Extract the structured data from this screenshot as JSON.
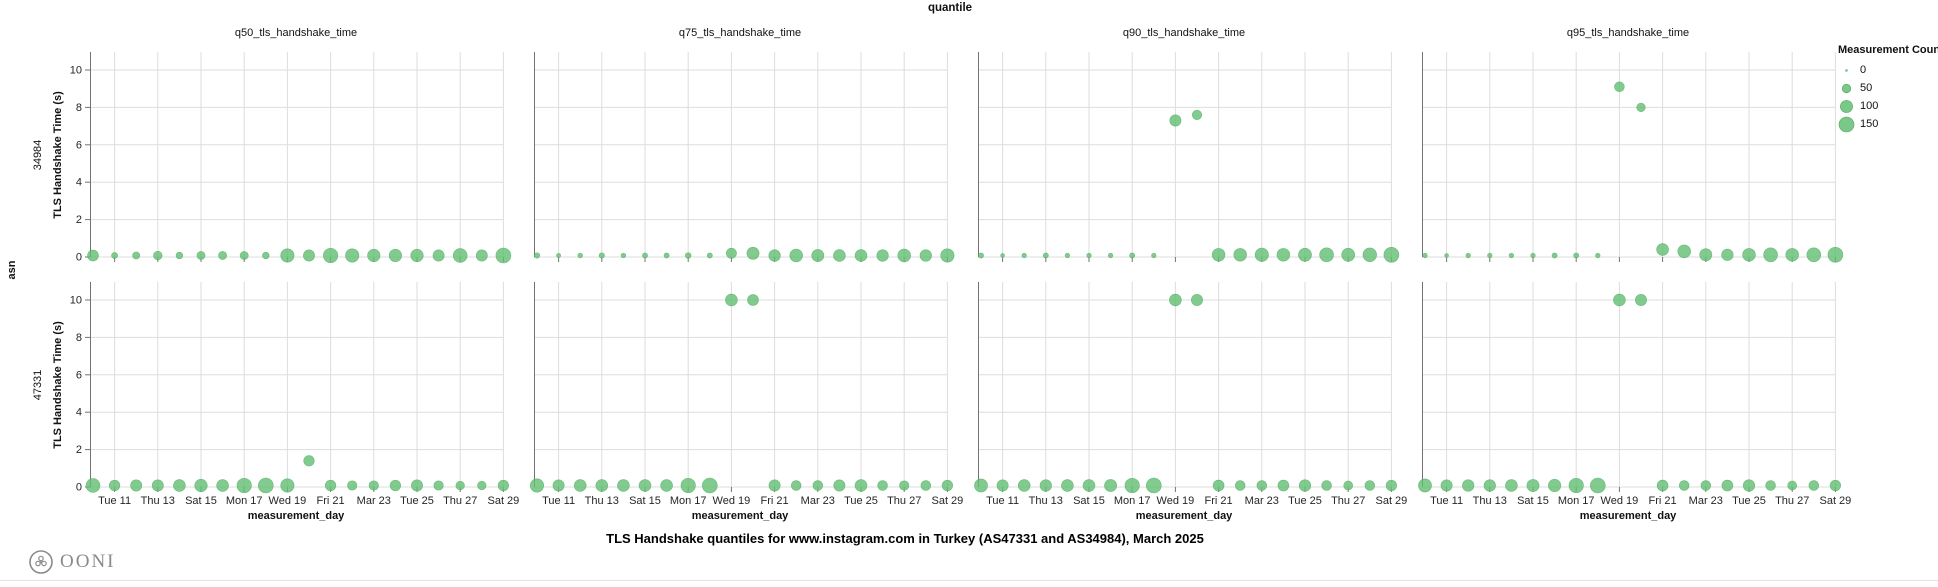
{
  "header": {
    "facet_title": "quantile"
  },
  "footer": {
    "caption": "TLS Handshake quantiles for www.instagram.com in Turkey (AS47331 and AS34984), March 2025",
    "brand": "OONI"
  },
  "legend": {
    "title": "Measurement Count",
    "items": [
      {
        "label": "0",
        "count": 0
      },
      {
        "label": "50",
        "count": 50
      },
      {
        "label": "100",
        "count": 100
      },
      {
        "label": "150",
        "count": 150
      }
    ]
  },
  "colors": {
    "point_fill": "#62BE73",
    "point_stroke": "#4fa961",
    "grid": "#dddddd",
    "axis_domain": "#737373",
    "tick_text": "#262626"
  },
  "chart_data": {
    "type": "scatter",
    "title": "quantile",
    "facets": {
      "row_title": "asn",
      "rows": [
        "34984",
        "47331"
      ],
      "columns": [
        "q50_tls_handshake_time",
        "q75_tls_handshake_time",
        "q90_tls_handshake_time",
        "q95_tls_handshake_time"
      ]
    },
    "axes": {
      "y": {
        "title": "TLS Handshake Time (s)",
        "ticks": [
          0,
          2,
          4,
          6,
          8,
          10
        ],
        "min": 0,
        "max": 10
      },
      "x": {
        "title": "measurement_day",
        "month": "March 2025",
        "day_range": [
          10,
          29
        ],
        "ticks": [
          {
            "day": 11,
            "label": "Tue 11"
          },
          {
            "day": 13,
            "label": "Thu 13"
          },
          {
            "day": 15,
            "label": "Sat 15"
          },
          {
            "day": 17,
            "label": "Mon 17"
          },
          {
            "day": 19,
            "label": "Wed 19"
          },
          {
            "day": 21,
            "label": "Fri 21"
          },
          {
            "day": 23,
            "label": "Mar 23"
          },
          {
            "day": 25,
            "label": "Tue 25"
          },
          {
            "day": 27,
            "label": "Thu 27"
          },
          {
            "day": 29,
            "label": "Sat 29"
          }
        ]
      }
    },
    "size_scale": {
      "field": "measurement_count",
      "type": "sqrt",
      "domain": [
        0,
        150
      ],
      "max_radius_px": 7.5
    },
    "point_format": [
      "day_of_march",
      "tls_handshake_time_s",
      "measurement_count"
    ],
    "panels": [
      {
        "row": "34984",
        "col": "q50_tls_handshake_time",
        "points": [
          [
            10,
            0.08,
            80
          ],
          [
            11,
            0.08,
            25
          ],
          [
            12,
            0.08,
            35
          ],
          [
            13,
            0.08,
            50
          ],
          [
            14,
            0.08,
            30
          ],
          [
            15,
            0.08,
            45
          ],
          [
            16,
            0.08,
            45
          ],
          [
            17,
            0.08,
            45
          ],
          [
            18,
            0.08,
            30
          ],
          [
            19,
            0.08,
            120
          ],
          [
            20,
            0.08,
            85
          ],
          [
            21,
            0.08,
            140
          ],
          [
            22,
            0.08,
            120
          ],
          [
            23,
            0.08,
            105
          ],
          [
            24,
            0.08,
            105
          ],
          [
            25,
            0.08,
            105
          ],
          [
            26,
            0.08,
            85
          ],
          [
            27,
            0.08,
            130
          ],
          [
            28,
            0.08,
            85
          ],
          [
            29,
            0.08,
            150
          ]
        ]
      },
      {
        "row": "34984",
        "col": "q75_tls_handshake_time",
        "points": [
          [
            10,
            0.08,
            20
          ],
          [
            11,
            0.08,
            12
          ],
          [
            12,
            0.08,
            15
          ],
          [
            13,
            0.08,
            20
          ],
          [
            14,
            0.08,
            15
          ],
          [
            15,
            0.08,
            18
          ],
          [
            16,
            0.08,
            18
          ],
          [
            17,
            0.08,
            22
          ],
          [
            18,
            0.08,
            18
          ],
          [
            19,
            0.2,
            70
          ],
          [
            20,
            0.2,
            100
          ],
          [
            21,
            0.08,
            90
          ],
          [
            22,
            0.08,
            110
          ],
          [
            23,
            0.08,
            100
          ],
          [
            24,
            0.08,
            95
          ],
          [
            25,
            0.08,
            95
          ],
          [
            26,
            0.08,
            90
          ],
          [
            27,
            0.08,
            110
          ],
          [
            28,
            0.08,
            90
          ],
          [
            29,
            0.08,
            120
          ]
        ]
      },
      {
        "row": "34984",
        "col": "q90_tls_handshake_time",
        "points": [
          [
            10,
            0.08,
            18
          ],
          [
            11,
            0.08,
            10
          ],
          [
            12,
            0.08,
            14
          ],
          [
            13,
            0.08,
            18
          ],
          [
            14,
            0.08,
            14
          ],
          [
            15,
            0.08,
            14
          ],
          [
            16,
            0.08,
            14
          ],
          [
            17,
            0.08,
            18
          ],
          [
            18,
            0.08,
            14
          ],
          [
            19,
            7.3,
            85
          ],
          [
            20,
            7.6,
            60
          ],
          [
            21,
            0.12,
            110
          ],
          [
            22,
            0.12,
            110
          ],
          [
            23,
            0.12,
            120
          ],
          [
            24,
            0.12,
            110
          ],
          [
            25,
            0.12,
            115
          ],
          [
            26,
            0.12,
            130
          ],
          [
            27,
            0.12,
            115
          ],
          [
            28,
            0.12,
            125
          ],
          [
            29,
            0.12,
            150
          ]
        ]
      },
      {
        "row": "34984",
        "col": "q95_tls_handshake_time",
        "points": [
          [
            10,
            0.08,
            14
          ],
          [
            11,
            0.08,
            10
          ],
          [
            12,
            0.08,
            14
          ],
          [
            13,
            0.08,
            14
          ],
          [
            14,
            0.08,
            14
          ],
          [
            15,
            0.08,
            14
          ],
          [
            16,
            0.08,
            18
          ],
          [
            17,
            0.08,
            18
          ],
          [
            18,
            0.08,
            14
          ],
          [
            19,
            9.1,
            65
          ],
          [
            20,
            8.0,
            50
          ],
          [
            21,
            0.4,
            95
          ],
          [
            22,
            0.3,
            110
          ],
          [
            23,
            0.12,
            100
          ],
          [
            24,
            0.12,
            90
          ],
          [
            25,
            0.12,
            110
          ],
          [
            26,
            0.12,
            130
          ],
          [
            27,
            0.12,
            110
          ],
          [
            28,
            0.12,
            130
          ],
          [
            29,
            0.12,
            150
          ]
        ]
      },
      {
        "row": "47331",
        "col": "q50_tls_handshake_time",
        "points": [
          [
            10,
            0.08,
            130
          ],
          [
            11,
            0.08,
            75
          ],
          [
            12,
            0.08,
            85
          ],
          [
            13,
            0.08,
            85
          ],
          [
            14,
            0.08,
            95
          ],
          [
            15,
            0.08,
            105
          ],
          [
            16,
            0.08,
            95
          ],
          [
            17,
            0.08,
            140
          ],
          [
            18,
            0.08,
            150
          ],
          [
            19,
            0.08,
            120
          ],
          [
            20,
            1.4,
            75
          ],
          [
            21,
            0.08,
            75
          ],
          [
            22,
            0.08,
            60
          ],
          [
            23,
            0.08,
            60
          ],
          [
            24,
            0.08,
            75
          ],
          [
            25,
            0.08,
            85
          ],
          [
            26,
            0.08,
            60
          ],
          [
            27,
            0.08,
            50
          ],
          [
            28,
            0.08,
            50
          ],
          [
            29,
            0.08,
            75
          ]
        ]
      },
      {
        "row": "47331",
        "col": "q75_tls_handshake_time",
        "points": [
          [
            10,
            0.08,
            120
          ],
          [
            11,
            0.08,
            85
          ],
          [
            12,
            0.08,
            95
          ],
          [
            13,
            0.08,
            95
          ],
          [
            14,
            0.08,
            95
          ],
          [
            15,
            0.08,
            95
          ],
          [
            16,
            0.08,
            95
          ],
          [
            17,
            0.08,
            140
          ],
          [
            18,
            0.08,
            150
          ],
          [
            19,
            10,
            95
          ],
          [
            20,
            10,
            80
          ],
          [
            21,
            0.08,
            85
          ],
          [
            22,
            0.08,
            65
          ],
          [
            23,
            0.08,
            65
          ],
          [
            24,
            0.08,
            85
          ],
          [
            25,
            0.08,
            95
          ],
          [
            26,
            0.08,
            65
          ],
          [
            27,
            0.08,
            60
          ],
          [
            28,
            0.08,
            65
          ],
          [
            29,
            0.08,
            75
          ]
        ]
      },
      {
        "row": "47331",
        "col": "q90_tls_handshake_time",
        "points": [
          [
            10,
            0.08,
            115
          ],
          [
            11,
            0.08,
            85
          ],
          [
            12,
            0.08,
            95
          ],
          [
            13,
            0.08,
            90
          ],
          [
            14,
            0.08,
            95
          ],
          [
            15,
            0.08,
            95
          ],
          [
            16,
            0.08,
            100
          ],
          [
            17,
            0.08,
            140
          ],
          [
            18,
            0.08,
            150
          ],
          [
            19,
            10,
            95
          ],
          [
            20,
            10,
            85
          ],
          [
            21,
            0.08,
            80
          ],
          [
            22,
            0.08,
            65
          ],
          [
            23,
            0.08,
            65
          ],
          [
            24,
            0.08,
            80
          ],
          [
            25,
            0.08,
            90
          ],
          [
            26,
            0.08,
            65
          ],
          [
            27,
            0.08,
            55
          ],
          [
            28,
            0.08,
            65
          ],
          [
            29,
            0.08,
            75
          ]
        ]
      },
      {
        "row": "47331",
        "col": "q95_tls_handshake_time",
        "points": [
          [
            10,
            0.08,
            115
          ],
          [
            11,
            0.08,
            85
          ],
          [
            12,
            0.08,
            90
          ],
          [
            13,
            0.08,
            90
          ],
          [
            14,
            0.08,
            95
          ],
          [
            15,
            0.08,
            100
          ],
          [
            16,
            0.08,
            105
          ],
          [
            17,
            0.08,
            140
          ],
          [
            18,
            0.08,
            150
          ],
          [
            19,
            10,
            95
          ],
          [
            20,
            10,
            85
          ],
          [
            21,
            0.08,
            80
          ],
          [
            22,
            0.08,
            65
          ],
          [
            23,
            0.08,
            65
          ],
          [
            24,
            0.08,
            80
          ],
          [
            25,
            0.08,
            90
          ],
          [
            26,
            0.08,
            65
          ],
          [
            27,
            0.08,
            55
          ],
          [
            28,
            0.08,
            65
          ],
          [
            29,
            0.08,
            75
          ]
        ]
      }
    ]
  }
}
